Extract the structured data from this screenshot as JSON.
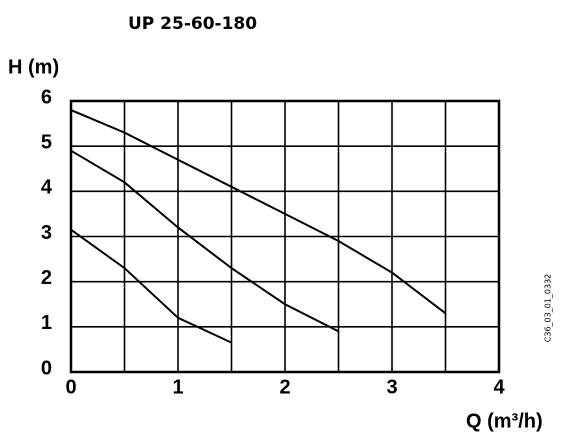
{
  "chart_data": {
    "type": "line",
    "title": "UP 25-60-180",
    "y_label": "H (m)",
    "x_label": "Q (m³/h)",
    "side_note": "C36_03_01_0332",
    "xlim": [
      0,
      4
    ],
    "ylim": [
      0,
      6
    ],
    "xticks": [
      0,
      1,
      2,
      3,
      4
    ],
    "yticks": [
      0,
      1,
      2,
      3,
      4,
      5,
      6
    ],
    "x_grid": [
      0.5,
      1,
      1.5,
      2,
      2.5,
      3,
      3.5
    ],
    "grid": true,
    "series": [
      {
        "color": "#000000",
        "x": [
          0,
          0.5,
          1,
          1.5,
          2,
          2.5,
          3,
          3.5
        ],
        "values": [
          5.8,
          5.3,
          4.7,
          4.1,
          3.5,
          2.9,
          2.2,
          1.3
        ]
      },
      {
        "color": "#000000",
        "x": [
          0,
          0.5,
          1,
          1.5,
          2,
          2.5
        ],
        "values": [
          4.9,
          4.2,
          3.2,
          2.3,
          1.5,
          0.9
        ]
      },
      {
        "color": "#000000",
        "x": [
          0,
          0.5,
          1,
          1.5
        ],
        "values": [
          3.15,
          2.3,
          1.2,
          0.65
        ]
      }
    ]
  }
}
